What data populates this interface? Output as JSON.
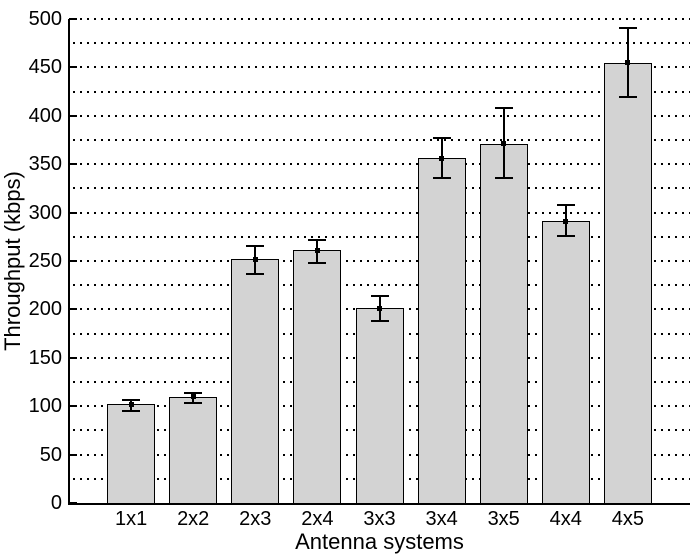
{
  "chart_data": {
    "type": "bar",
    "title": "",
    "xlabel": "Antenna systems",
    "ylabel": "Throughput (kbps)",
    "categories": [
      "1x1",
      "2x2",
      "2x3",
      "2x4",
      "3x3",
      "3x4",
      "3x5",
      "4x4",
      "4x5"
    ],
    "values": [
      102,
      110,
      252,
      261,
      201,
      356,
      371,
      291,
      455
    ],
    "error_upper": [
      106,
      114,
      266,
      272,
      214,
      377,
      408,
      308,
      491
    ],
    "error_lower": [
      95,
      103,
      237,
      248,
      188,
      336,
      336,
      276,
      419
    ],
    "ylim": [
      0,
      500
    ],
    "yticks": [
      0,
      50,
      100,
      150,
      200,
      250,
      300,
      350,
      400,
      450,
      500
    ],
    "grid": "horizontal dotted",
    "grid_step": 25,
    "legend": "none",
    "colors": {
      "bar_fill": "#d3d3d3",
      "bar_edge": "#000000",
      "axis": "#000000",
      "grid": "#000000",
      "text": "#000000",
      "background": "#ffffff"
    }
  }
}
